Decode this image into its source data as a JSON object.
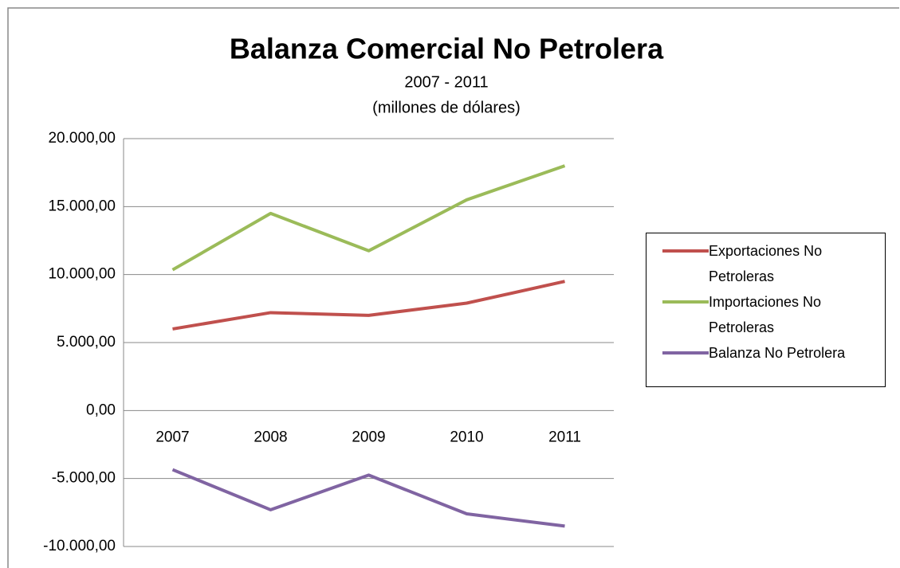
{
  "chart_data": {
    "type": "line",
    "title": "Balanza Comercial No Petrolera",
    "subtitle": [
      "2007 - 2011",
      "(millones de dólares)"
    ],
    "categories": [
      "2007",
      "2008",
      "2009",
      "2010",
      "2011"
    ],
    "series": [
      {
        "name": "Exportaciones No Petroleras",
        "color": "#c0504d",
        "values": [
          6000,
          7200,
          7000,
          7900,
          9500
        ]
      },
      {
        "name": "Importaciones No Petroleras",
        "color": "#9bbb59",
        "values": [
          10350,
          14500,
          11750,
          15500,
          18000
        ]
      },
      {
        "name": "Balanza No Petrolera",
        "color": "#8064a2",
        "values": [
          -4350,
          -7300,
          -4750,
          -7600,
          -8500
        ]
      }
    ],
    "ylim": [
      -10000,
      20000
    ],
    "yticks": [
      {
        "value": -10000,
        "label": "-10.000,00"
      },
      {
        "value": -5000,
        "label": "-5.000,00"
      },
      {
        "value": 0,
        "label": "0,00"
      },
      {
        "value": 5000,
        "label": "5.000,00"
      },
      {
        "value": 10000,
        "label": "10.000,00"
      },
      {
        "value": 15000,
        "label": "15.000,00"
      },
      {
        "value": 20000,
        "label": "20.000,00"
      }
    ],
    "grid": true,
    "legend": "right"
  }
}
